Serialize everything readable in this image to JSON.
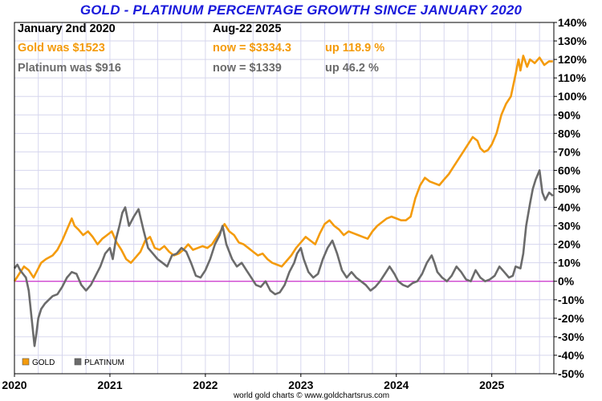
{
  "title": "GOLD - PLATINUM PERCENTAGE GROWTH SINCE JANUARY 2020",
  "info": {
    "start_label": "January 2nd 2020",
    "end_label": "Aug-22  2025",
    "gold": {
      "was": "Gold was $1523",
      "now": "now = $3334.3",
      "up": "up 118.9 %"
    },
    "platinum": {
      "was": "Platinum was $916",
      "now": "now = $1339",
      "up": "up 46.2 %"
    }
  },
  "footer": "world gold charts © www.goldchartsrus.com",
  "colors": {
    "gold": "#f49b0c",
    "platinum": "#6b6b6b",
    "title": "#1a1adb",
    "zero_line": "#cc33cc",
    "grid": "#d6d6ee"
  },
  "chart_data": {
    "type": "line",
    "title": "GOLD - PLATINUM PERCENTAGE GROWTH SINCE JANUARY 2020",
    "xlabel": "",
    "ylabel": "",
    "xlim": [
      2020.0,
      2025.65
    ],
    "ylim": [
      -50,
      140
    ],
    "x_ticks": [
      2020,
      2021,
      2022,
      2023,
      2024,
      2025
    ],
    "x_tick_labels": [
      "2020",
      "2021",
      "2022",
      "2023",
      "2024",
      "2025"
    ],
    "y_ticks": [
      -50,
      -40,
      -30,
      -20,
      -10,
      0,
      10,
      20,
      30,
      40,
      50,
      60,
      70,
      80,
      90,
      100,
      110,
      120,
      130,
      140
    ],
    "y_tick_labels": [
      "-50%",
      "-40%",
      "-30%",
      "-20%",
      "-10%",
      "0%",
      "10%",
      "20%",
      "30%",
      "40%",
      "50%",
      "60%",
      "70%",
      "80%",
      "90%",
      "100%",
      "110%",
      "120%",
      "130%",
      "140%"
    ],
    "grid": true,
    "legend_position": "bottom-left",
    "series": [
      {
        "name": "GOLD",
        "color": "#f49b0c",
        "points": [
          [
            2020.0,
            0
          ],
          [
            2020.05,
            4
          ],
          [
            2020.1,
            8
          ],
          [
            2020.15,
            6
          ],
          [
            2020.2,
            2
          ],
          [
            2020.23,
            5
          ],
          [
            2020.28,
            10
          ],
          [
            2020.33,
            12
          ],
          [
            2020.4,
            14
          ],
          [
            2020.45,
            17
          ],
          [
            2020.5,
            22
          ],
          [
            2020.55,
            28
          ],
          [
            2020.6,
            34
          ],
          [
            2020.63,
            30
          ],
          [
            2020.67,
            28
          ],
          [
            2020.72,
            25
          ],
          [
            2020.77,
            27
          ],
          [
            2020.82,
            24
          ],
          [
            2020.87,
            20
          ],
          [
            2020.92,
            23
          ],
          [
            2020.97,
            25
          ],
          [
            2021.02,
            27
          ],
          [
            2021.07,
            21
          ],
          [
            2021.12,
            17
          ],
          [
            2021.17,
            12
          ],
          [
            2021.22,
            10
          ],
          [
            2021.27,
            13
          ],
          [
            2021.32,
            16
          ],
          [
            2021.37,
            22
          ],
          [
            2021.42,
            24
          ],
          [
            2021.47,
            18
          ],
          [
            2021.52,
            17
          ],
          [
            2021.57,
            19
          ],
          [
            2021.62,
            16
          ],
          [
            2021.67,
            14
          ],
          [
            2021.72,
            15
          ],
          [
            2021.77,
            17
          ],
          [
            2021.82,
            20
          ],
          [
            2021.87,
            17
          ],
          [
            2021.92,
            18
          ],
          [
            2021.97,
            19
          ],
          [
            2022.02,
            18
          ],
          [
            2022.07,
            20
          ],
          [
            2022.12,
            24
          ],
          [
            2022.17,
            28
          ],
          [
            2022.2,
            31
          ],
          [
            2022.25,
            27
          ],
          [
            2022.3,
            25
          ],
          [
            2022.35,
            21
          ],
          [
            2022.4,
            20
          ],
          [
            2022.45,
            18
          ],
          [
            2022.5,
            16
          ],
          [
            2022.55,
            14
          ],
          [
            2022.6,
            15
          ],
          [
            2022.65,
            12
          ],
          [
            2022.7,
            10
          ],
          [
            2022.75,
            9
          ],
          [
            2022.8,
            8
          ],
          [
            2022.85,
            11
          ],
          [
            2022.9,
            14
          ],
          [
            2022.95,
            18
          ],
          [
            2023.0,
            21
          ],
          [
            2023.05,
            24
          ],
          [
            2023.1,
            22
          ],
          [
            2023.15,
            20
          ],
          [
            2023.2,
            26
          ],
          [
            2023.25,
            31
          ],
          [
            2023.3,
            33
          ],
          [
            2023.35,
            30
          ],
          [
            2023.4,
            28
          ],
          [
            2023.45,
            25
          ],
          [
            2023.5,
            27
          ],
          [
            2023.55,
            26
          ],
          [
            2023.6,
            25
          ],
          [
            2023.65,
            24
          ],
          [
            2023.7,
            23
          ],
          [
            2023.75,
            27
          ],
          [
            2023.8,
            30
          ],
          [
            2023.85,
            32
          ],
          [
            2023.9,
            34
          ],
          [
            2023.95,
            35
          ],
          [
            2024.0,
            34
          ],
          [
            2024.05,
            33
          ],
          [
            2024.1,
            33
          ],
          [
            2024.15,
            35
          ],
          [
            2024.2,
            45
          ],
          [
            2024.25,
            52
          ],
          [
            2024.3,
            56
          ],
          [
            2024.35,
            54
          ],
          [
            2024.4,
            53
          ],
          [
            2024.45,
            52
          ],
          [
            2024.5,
            55
          ],
          [
            2024.55,
            58
          ],
          [
            2024.6,
            62
          ],
          [
            2024.65,
            66
          ],
          [
            2024.7,
            70
          ],
          [
            2024.75,
            74
          ],
          [
            2024.8,
            78
          ],
          [
            2024.85,
            76
          ],
          [
            2024.88,
            72
          ],
          [
            2024.92,
            70
          ],
          [
            2024.96,
            71
          ],
          [
            2025.0,
            74
          ],
          [
            2025.05,
            80
          ],
          [
            2025.1,
            90
          ],
          [
            2025.15,
            96
          ],
          [
            2025.2,
            100
          ],
          [
            2025.25,
            112
          ],
          [
            2025.28,
            120
          ],
          [
            2025.3,
            114
          ],
          [
            2025.33,
            122
          ],
          [
            2025.37,
            116
          ],
          [
            2025.4,
            120
          ],
          [
            2025.45,
            118
          ],
          [
            2025.5,
            121
          ],
          [
            2025.55,
            117
          ],
          [
            2025.6,
            119
          ],
          [
            2025.64,
            118.9
          ]
        ]
      },
      {
        "name": "PLATINUM",
        "color": "#6b6b6b",
        "points": [
          [
            2020.0,
            7
          ],
          [
            2020.03,
            9
          ],
          [
            2020.06,
            6
          ],
          [
            2020.09,
            4
          ],
          [
            2020.12,
            2
          ],
          [
            2020.15,
            -5
          ],
          [
            2020.18,
            -20
          ],
          [
            2020.21,
            -35
          ],
          [
            2020.23,
            -28
          ],
          [
            2020.25,
            -20
          ],
          [
            2020.28,
            -15
          ],
          [
            2020.32,
            -12
          ],
          [
            2020.36,
            -10
          ],
          [
            2020.4,
            -8
          ],
          [
            2020.45,
            -7
          ],
          [
            2020.5,
            -3
          ],
          [
            2020.55,
            2
          ],
          [
            2020.6,
            5
          ],
          [
            2020.65,
            4
          ],
          [
            2020.7,
            -2
          ],
          [
            2020.75,
            -5
          ],
          [
            2020.8,
            -2
          ],
          [
            2020.85,
            3
          ],
          [
            2020.9,
            8
          ],
          [
            2020.95,
            15
          ],
          [
            2021.0,
            18
          ],
          [
            2021.03,
            12
          ],
          [
            2021.06,
            22
          ],
          [
            2021.1,
            30
          ],
          [
            2021.13,
            37
          ],
          [
            2021.16,
            40
          ],
          [
            2021.2,
            30
          ],
          [
            2021.25,
            35
          ],
          [
            2021.3,
            39
          ],
          [
            2021.35,
            28
          ],
          [
            2021.4,
            18
          ],
          [
            2021.45,
            15
          ],
          [
            2021.5,
            12
          ],
          [
            2021.55,
            10
          ],
          [
            2021.6,
            8
          ],
          [
            2021.65,
            14
          ],
          [
            2021.7,
            15
          ],
          [
            2021.75,
            18
          ],
          [
            2021.8,
            16
          ],
          [
            2021.85,
            10
          ],
          [
            2021.9,
            3
          ],
          [
            2021.95,
            2
          ],
          [
            2022.0,
            6
          ],
          [
            2022.05,
            12
          ],
          [
            2022.1,
            20
          ],
          [
            2022.15,
            25
          ],
          [
            2022.18,
            30
          ],
          [
            2022.22,
            20
          ],
          [
            2022.28,
            12
          ],
          [
            2022.33,
            8
          ],
          [
            2022.38,
            10
          ],
          [
            2022.43,
            6
          ],
          [
            2022.48,
            2
          ],
          [
            2022.53,
            -2
          ],
          [
            2022.58,
            -3
          ],
          [
            2022.63,
            0
          ],
          [
            2022.68,
            -5
          ],
          [
            2022.73,
            -7
          ],
          [
            2022.78,
            -6
          ],
          [
            2022.83,
            -2
          ],
          [
            2022.88,
            5
          ],
          [
            2022.93,
            10
          ],
          [
            2022.96,
            15
          ],
          [
            2023.0,
            18
          ],
          [
            2023.03,
            12
          ],
          [
            2023.08,
            5
          ],
          [
            2023.13,
            2
          ],
          [
            2023.18,
            4
          ],
          [
            2023.23,
            12
          ],
          [
            2023.28,
            18
          ],
          [
            2023.33,
            22
          ],
          [
            2023.38,
            15
          ],
          [
            2023.43,
            6
          ],
          [
            2023.48,
            2
          ],
          [
            2023.53,
            5
          ],
          [
            2023.58,
            2
          ],
          [
            2023.63,
            0
          ],
          [
            2023.68,
            -2
          ],
          [
            2023.73,
            -5
          ],
          [
            2023.78,
            -3
          ],
          [
            2023.83,
            0
          ],
          [
            2023.88,
            4
          ],
          [
            2023.93,
            8
          ],
          [
            2023.98,
            4
          ],
          [
            2024.02,
            0
          ],
          [
            2024.07,
            -2
          ],
          [
            2024.12,
            -3
          ],
          [
            2024.17,
            -1
          ],
          [
            2024.22,
            0
          ],
          [
            2024.27,
            4
          ],
          [
            2024.32,
            10
          ],
          [
            2024.37,
            14
          ],
          [
            2024.4,
            10
          ],
          [
            2024.43,
            5
          ],
          [
            2024.48,
            2
          ],
          [
            2024.53,
            0
          ],
          [
            2024.58,
            3
          ],
          [
            2024.63,
            8
          ],
          [
            2024.68,
            5
          ],
          [
            2024.73,
            1
          ],
          [
            2024.78,
            0
          ],
          [
            2024.83,
            6
          ],
          [
            2024.88,
            2
          ],
          [
            2024.93,
            0
          ],
          [
            2024.98,
            1
          ],
          [
            2025.03,
            3
          ],
          [
            2025.08,
            8
          ],
          [
            2025.13,
            5
          ],
          [
            2025.18,
            2
          ],
          [
            2025.22,
            3
          ],
          [
            2025.25,
            8
          ],
          [
            2025.3,
            7
          ],
          [
            2025.33,
            15
          ],
          [
            2025.36,
            30
          ],
          [
            2025.4,
            42
          ],
          [
            2025.43,
            50
          ],
          [
            2025.46,
            55
          ],
          [
            2025.5,
            60
          ],
          [
            2025.53,
            48
          ],
          [
            2025.56,
            44
          ],
          [
            2025.6,
            48
          ],
          [
            2025.64,
            46.2
          ]
        ]
      }
    ]
  }
}
